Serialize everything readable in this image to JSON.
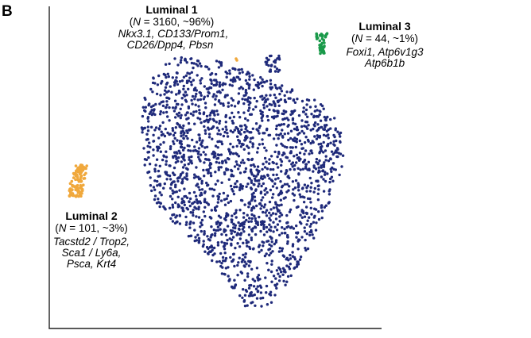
{
  "figure": {
    "panel_label": "B"
  },
  "chart_data": {
    "type": "scatter",
    "title": "",
    "xlabel": "",
    "ylabel": "",
    "grid": false,
    "colors": {
      "luminal1": "#1f2a7a",
      "luminal2": "#f0a83c",
      "luminal3": "#1a9a4a",
      "axis": "#222222"
    },
    "clusters": [
      {
        "id": "luminal1",
        "name": "Luminal 1",
        "count_prefix": "(",
        "count_n": "N",
        "count_rest": " = 3160, ~96%)",
        "genes": [
          "Nkx3.1, CD133/Prom1,",
          "CD26/Dpp4, Pbsn"
        ],
        "cells": 3160,
        "percent": 96
      },
      {
        "id": "luminal2",
        "name": "Luminal 2",
        "count_prefix": "(",
        "count_n": "N",
        "count_rest": " = 101, ~3%)",
        "genes": [
          "Tacstd2 / Trop2,",
          "Sca1 / Ly6a,",
          "Psca, Krt4"
        ],
        "cells": 101,
        "percent": 3
      },
      {
        "id": "luminal3",
        "name": "Luminal 3",
        "count_prefix": "(",
        "count_n": "N",
        "count_rest": " = 44, ~1%)",
        "genes": [
          "Foxi1, Atp6v1g3",
          "Atp6b1b"
        ],
        "cells": 44,
        "percent": 1
      }
    ]
  }
}
